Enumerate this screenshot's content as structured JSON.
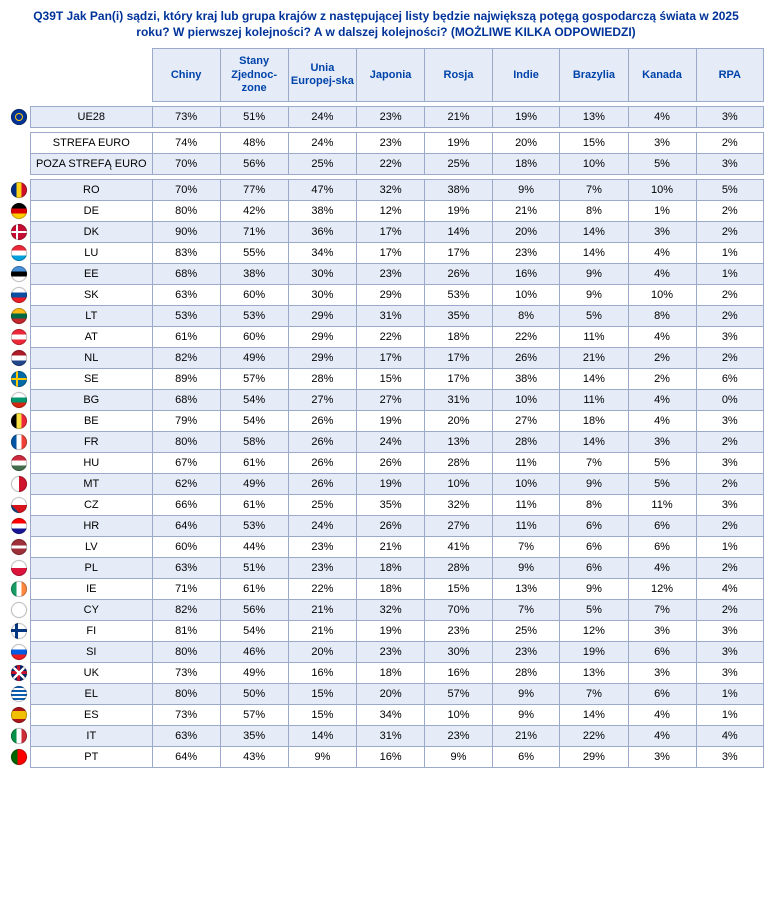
{
  "title": "Q39T Jak Pan(i) sądzi, który kraj lub grupa krajów z następującej listy będzie największą potęgą gospodarczą świata w 2025 roku? W pierwszej kolejności? A w dalszej kolejności? (MOŻLIWE KILKA ODPOWIEDZI)",
  "columns": [
    "Chiny",
    "Stany Zjednoc-zone",
    "Unia Europej-ska",
    "Japonia",
    "Rosja",
    "Indie",
    "Brazylia",
    "Kanada",
    "RPA"
  ],
  "group1": [
    {
      "flag": "eu",
      "label": "UE28",
      "cells": [
        "73%",
        "51%",
        "24%",
        "23%",
        "21%",
        "19%",
        "13%",
        "4%",
        "3%"
      ]
    }
  ],
  "group2": [
    {
      "flag": "",
      "label": "STREFA EURO",
      "cells": [
        "74%",
        "48%",
        "24%",
        "23%",
        "19%",
        "20%",
        "15%",
        "3%",
        "2%"
      ]
    },
    {
      "flag": "",
      "label": "POZA STREFĄ EURO",
      "cells": [
        "70%",
        "56%",
        "25%",
        "22%",
        "25%",
        "18%",
        "10%",
        "5%",
        "3%"
      ]
    }
  ],
  "group3": [
    {
      "flag": "ro",
      "label": "RO",
      "cells": [
        "70%",
        "77%",
        "47%",
        "32%",
        "38%",
        "9%",
        "7%",
        "10%",
        "5%"
      ]
    },
    {
      "flag": "de",
      "label": "DE",
      "cells": [
        "80%",
        "42%",
        "38%",
        "12%",
        "19%",
        "21%",
        "8%",
        "1%",
        "2%"
      ]
    },
    {
      "flag": "dk",
      "label": "DK",
      "cells": [
        "90%",
        "71%",
        "36%",
        "17%",
        "14%",
        "20%",
        "14%",
        "3%",
        "2%"
      ]
    },
    {
      "flag": "lu",
      "label": "LU",
      "cells": [
        "83%",
        "55%",
        "34%",
        "17%",
        "17%",
        "23%",
        "14%",
        "4%",
        "1%"
      ]
    },
    {
      "flag": "ee",
      "label": "EE",
      "cells": [
        "68%",
        "38%",
        "30%",
        "23%",
        "26%",
        "16%",
        "9%",
        "4%",
        "1%"
      ]
    },
    {
      "flag": "sk",
      "label": "SK",
      "cells": [
        "63%",
        "60%",
        "30%",
        "29%",
        "53%",
        "10%",
        "9%",
        "10%",
        "2%"
      ]
    },
    {
      "flag": "lt",
      "label": "LT",
      "cells": [
        "53%",
        "53%",
        "29%",
        "31%",
        "35%",
        "8%",
        "5%",
        "8%",
        "2%"
      ]
    },
    {
      "flag": "at",
      "label": "AT",
      "cells": [
        "61%",
        "60%",
        "29%",
        "22%",
        "18%",
        "22%",
        "11%",
        "4%",
        "3%"
      ]
    },
    {
      "flag": "nl",
      "label": "NL",
      "cells": [
        "82%",
        "49%",
        "29%",
        "17%",
        "17%",
        "26%",
        "21%",
        "2%",
        "2%"
      ]
    },
    {
      "flag": "se",
      "label": "SE",
      "cells": [
        "89%",
        "57%",
        "28%",
        "15%",
        "17%",
        "38%",
        "14%",
        "2%",
        "6%"
      ]
    },
    {
      "flag": "bg",
      "label": "BG",
      "cells": [
        "68%",
        "54%",
        "27%",
        "27%",
        "31%",
        "10%",
        "11%",
        "4%",
        "0%"
      ]
    },
    {
      "flag": "be",
      "label": "BE",
      "cells": [
        "79%",
        "54%",
        "26%",
        "19%",
        "20%",
        "27%",
        "18%",
        "4%",
        "3%"
      ]
    },
    {
      "flag": "fr",
      "label": "FR",
      "cells": [
        "80%",
        "58%",
        "26%",
        "24%",
        "13%",
        "28%",
        "14%",
        "3%",
        "2%"
      ]
    },
    {
      "flag": "hu",
      "label": "HU",
      "cells": [
        "67%",
        "61%",
        "26%",
        "26%",
        "28%",
        "11%",
        "7%",
        "5%",
        "3%"
      ]
    },
    {
      "flag": "mt",
      "label": "MT",
      "cells": [
        "62%",
        "49%",
        "26%",
        "19%",
        "10%",
        "10%",
        "9%",
        "5%",
        "2%"
      ]
    },
    {
      "flag": "cz",
      "label": "CZ",
      "cells": [
        "66%",
        "61%",
        "25%",
        "35%",
        "32%",
        "11%",
        "8%",
        "11%",
        "3%"
      ]
    },
    {
      "flag": "hr",
      "label": "HR",
      "cells": [
        "64%",
        "53%",
        "24%",
        "26%",
        "27%",
        "11%",
        "6%",
        "6%",
        "2%"
      ]
    },
    {
      "flag": "lv",
      "label": "LV",
      "cells": [
        "60%",
        "44%",
        "23%",
        "21%",
        "41%",
        "7%",
        "6%",
        "6%",
        "1%"
      ]
    },
    {
      "flag": "pl",
      "label": "PL",
      "cells": [
        "63%",
        "51%",
        "23%",
        "18%",
        "28%",
        "9%",
        "6%",
        "4%",
        "2%"
      ]
    },
    {
      "flag": "ie",
      "label": "IE",
      "cells": [
        "71%",
        "61%",
        "22%",
        "18%",
        "15%",
        "13%",
        "9%",
        "12%",
        "4%"
      ]
    },
    {
      "flag": "cy",
      "label": "CY",
      "cells": [
        "82%",
        "56%",
        "21%",
        "32%",
        "70%",
        "7%",
        "5%",
        "7%",
        "2%"
      ]
    },
    {
      "flag": "fi",
      "label": "FI",
      "cells": [
        "81%",
        "54%",
        "21%",
        "19%",
        "23%",
        "25%",
        "12%",
        "3%",
        "3%"
      ]
    },
    {
      "flag": "si",
      "label": "SI",
      "cells": [
        "80%",
        "46%",
        "20%",
        "23%",
        "30%",
        "23%",
        "19%",
        "6%",
        "3%"
      ]
    },
    {
      "flag": "uk",
      "label": "UK",
      "cells": [
        "73%",
        "49%",
        "16%",
        "18%",
        "16%",
        "28%",
        "13%",
        "3%",
        "3%"
      ]
    },
    {
      "flag": "el",
      "label": "EL",
      "cells": [
        "80%",
        "50%",
        "15%",
        "20%",
        "57%",
        "9%",
        "7%",
        "6%",
        "1%"
      ]
    },
    {
      "flag": "es",
      "label": "ES",
      "cells": [
        "73%",
        "57%",
        "15%",
        "34%",
        "10%",
        "9%",
        "14%",
        "4%",
        "1%"
      ]
    },
    {
      "flag": "it",
      "label": "IT",
      "cells": [
        "63%",
        "35%",
        "14%",
        "31%",
        "23%",
        "21%",
        "22%",
        "4%",
        "4%"
      ]
    },
    {
      "flag": "pt",
      "label": "PT",
      "cells": [
        "64%",
        "43%",
        "9%",
        "16%",
        "9%",
        "6%",
        "29%",
        "3%",
        "3%"
      ]
    }
  ],
  "flagStyles": {
    "eu": "background: radial-gradient(circle at center, #003399 62%, #003399 100%); box-shadow: inset 0 0 0 1px rgba(0,0,0,.25), inset 0 0 0 4px #003399, inset 0 0 0 5px #ffcc00, 0 0 1px rgba(0,0,0,.2);",
    "ro": "background: linear-gradient(90deg,#002b7f 33%,#fcd116 33% 66%,#ce1126 66%);",
    "de": "background: linear-gradient(180deg,#000 33%,#dd0000 33% 66%,#ffce00 66%);",
    "dk": "background:#c60c30; background-image: linear-gradient(#fff,#fff), linear-gradient(#fff,#fff); background-repeat:no-repeat; background-position: 35% 0, 0 50%; background-size: 2px 100%, 100% 2px;",
    "lu": "background: linear-gradient(180deg,#ed2939 33%,#fff 33% 66%,#00a1de 66%);",
    "ee": "background: linear-gradient(180deg,#4891d9 33%,#000 33% 66%,#fff 66%);",
    "sk": "background: linear-gradient(180deg,#fff 33%,#0b4ea2 33% 66%,#ee1c25 66%);",
    "lt": "background: linear-gradient(180deg,#fdb913 33%,#006a44 33% 66%,#c1272d 66%);",
    "at": "background: linear-gradient(180deg,#ed2939 33%,#fff 33% 66%,#ed2939 66%);",
    "nl": "background: linear-gradient(180deg,#ae1c28 33%,#fff 33% 66%,#21468b 66%);",
    "se": "background:#006aa7; background-image: linear-gradient(#fecc00,#fecc00), linear-gradient(#fecc00,#fecc00); background-repeat:no-repeat; background-position: 35% 0, 0 50%; background-size: 2px 100%, 100% 2px;",
    "bg": "background: linear-gradient(180deg,#fff 33%,#00966e 33% 66%,#d62612 66%);",
    "be": "background: linear-gradient(90deg,#000 33%,#fae042 33% 66%,#ed2939 66%);",
    "fr": "background: linear-gradient(90deg,#0055a4 33%,#fff 33% 66%,#ef4135 66%);",
    "hu": "background: linear-gradient(180deg,#cd2a3e 33%,#fff 33% 66%,#436f4d 66%);",
    "mt": "background: linear-gradient(90deg,#fff 50%,#cf142b 50%);",
    "cz": "background: conic-gradient(from 135deg at 0% 50%, #11457e 0 90deg, transparent 0), linear-gradient(180deg,#fff 50%,#d7141a 50%);",
    "hr": "background: linear-gradient(180deg,#ff0000 33%,#fff 33% 66%,#171796 66%);",
    "lv": "background: linear-gradient(180deg,#9e3039 40%,#fff 40% 60%,#9e3039 60%);",
    "pl": "background: linear-gradient(180deg,#fff 50%,#dc143c 50%);",
    "ie": "background: linear-gradient(90deg,#169b62 33%,#fff 33% 66%,#ff883e 66%);",
    "cy": "background:#fff;",
    "fi": "background:#fff; background-image: linear-gradient(#003580,#003580), linear-gradient(#003580,#003580); background-repeat:no-repeat; background-position: 35% 0, 0 50%; background-size: 3px 100%, 100% 3px;",
    "si": "background: linear-gradient(180deg,#fff 33%,#005ce5 33% 66%,#ed1c24 66%);",
    "uk": "background:#012169; background-image: linear-gradient(45deg, transparent 44%, #fff 44% 56%, transparent 56%), linear-gradient(-45deg, transparent 44%, #fff 44% 56%, transparent 56%), linear-gradient(#c8102e,#c8102e), linear-gradient(#c8102e,#c8102e); background-repeat:no-repeat; background-position:0 0,0 0,50% 0,0 50%; background-size:100% 100%,100% 100%,3px 100%,100% 3px;",
    "el": "background: repeating-linear-gradient(180deg,#0d5eaf 0 2px,#fff 2px 4px);",
    "es": "background: linear-gradient(180deg,#aa151b 25%,#f1bf00 25% 75%,#aa151b 75%);",
    "it": "background: linear-gradient(90deg,#009246 33%,#fff 33% 66%,#ce2b37 66%);",
    "pt": "background: linear-gradient(90deg,#006600 40%,#ff0000 40%);"
  }
}
